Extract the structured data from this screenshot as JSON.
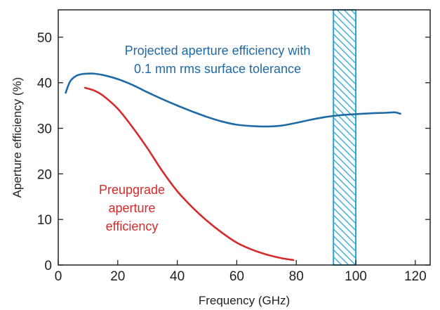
{
  "chart_data": {
    "type": "line",
    "title": "",
    "xlabel": "Frequency (GHz)",
    "ylabel": "Aperture efficiency (%)",
    "xlim": [
      0,
      125
    ],
    "ylim": [
      0,
      56
    ],
    "x_ticks": [
      0,
      20,
      40,
      60,
      80,
      100,
      120
    ],
    "y_ticks": [
      0,
      10,
      20,
      30,
      40,
      50
    ],
    "grid": false,
    "series": [
      {
        "name": "",
        "color": "#1f6aa5",
        "x": [
          2.5,
          4,
          6,
          8,
          10,
          12,
          15,
          20,
          25,
          30,
          35,
          40,
          45,
          50,
          55,
          60,
          65,
          70,
          75,
          80,
          85,
          90,
          95,
          100,
          105,
          110,
          113,
          115
        ],
        "y": [
          37.8,
          40.3,
          41.5,
          41.9,
          42.0,
          42.0,
          41.7,
          40.8,
          39.5,
          37.9,
          36.4,
          35.0,
          33.7,
          32.5,
          31.5,
          30.8,
          30.5,
          30.4,
          30.6,
          31.2,
          31.9,
          32.5,
          32.9,
          33.1,
          33.3,
          33.4,
          33.5,
          33.2
        ]
      },
      {
        "name": "",
        "color": "#d42a2a",
        "x": [
          9,
          12,
          15,
          20,
          25,
          30,
          35,
          40,
          45,
          50,
          55,
          60,
          65,
          70,
          75,
          79
        ],
        "y": [
          38.9,
          38.3,
          37.2,
          34.3,
          30.2,
          25.6,
          20.6,
          16.2,
          12.7,
          9.7,
          7.1,
          4.9,
          3.4,
          2.3,
          1.5,
          1.1
        ]
      }
    ],
    "shaded_band": {
      "x_start": 92.5,
      "x_end": 100,
      "color": "#2aa6cc"
    },
    "annotations": [
      {
        "lines": [
          "Projected aperture efficiency with",
          "0.1 mm rms surface tolerance"
        ],
        "color": "#1f6aa5"
      },
      {
        "lines": [
          "Preupgrade",
          "aperture",
          "efficiency"
        ],
        "color": "#d42a2a"
      }
    ]
  }
}
